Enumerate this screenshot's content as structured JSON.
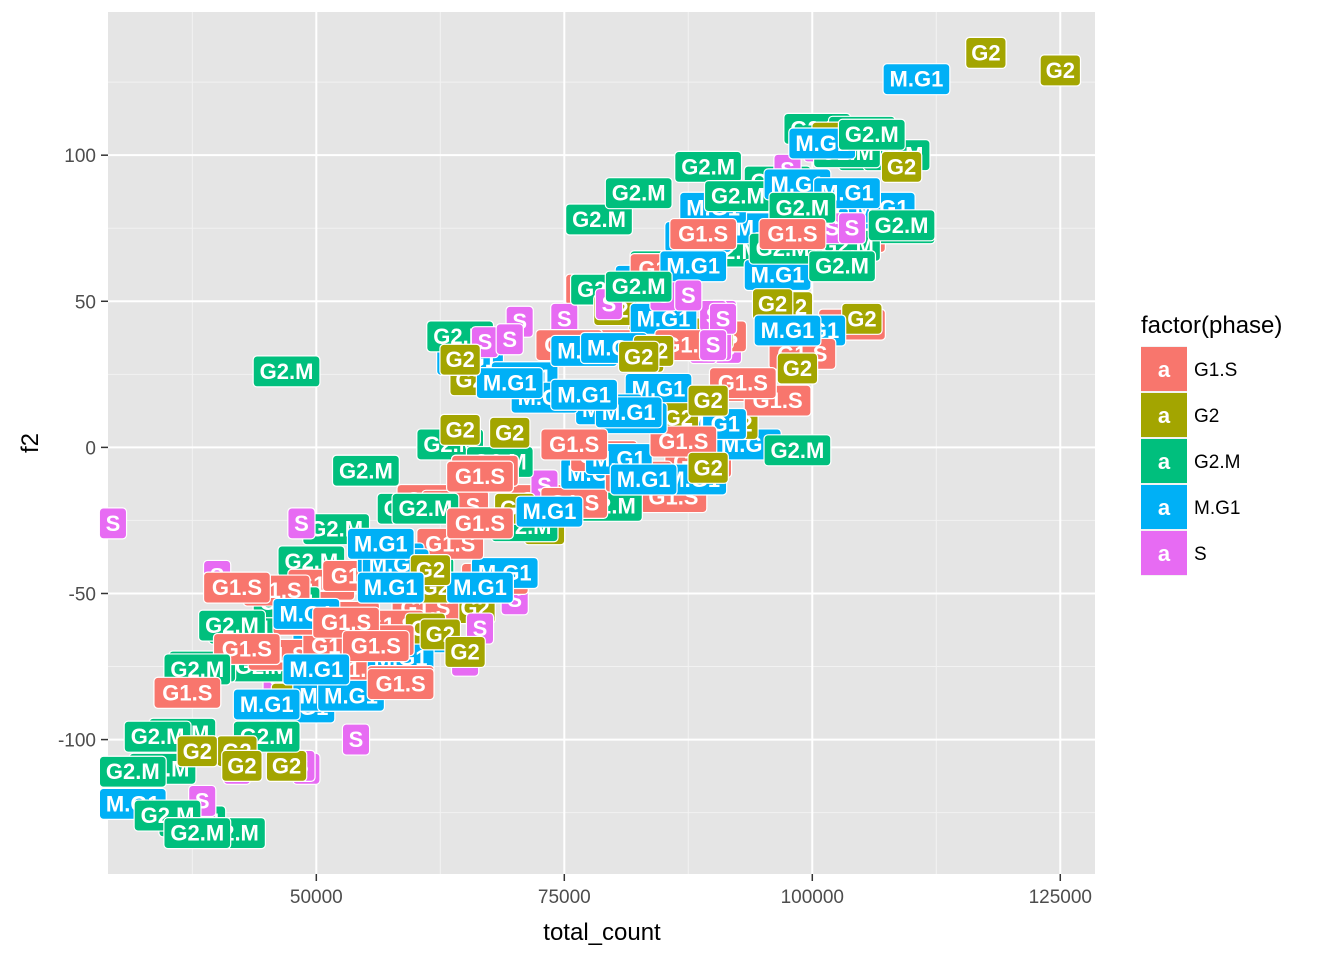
{
  "chart_data": {
    "type": "scatter",
    "subtype": "labelled points (geom_label)",
    "xlabel": "total_count",
    "ylabel": "f2",
    "xlim": [
      29000,
      128500
    ],
    "ylim": [
      -146,
      149
    ],
    "x_ticks": [
      50000,
      75000,
      100000,
      125000
    ],
    "x_tick_labels": [
      "50000",
      "75000",
      "100000",
      "125000"
    ],
    "y_ticks": [
      -100,
      -50,
      0,
      50,
      100
    ],
    "y_tick_labels": [
      "-100",
      "-50",
      "0",
      "50",
      "100"
    ],
    "grid": true,
    "legend": {
      "title": "factor(phase)",
      "placement": "right",
      "key_glyph": "a",
      "entries": [
        {
          "name": "G1.S",
          "color": "#F8766D"
        },
        {
          "name": "G2",
          "color": "#A3A500"
        },
        {
          "name": "G2.M",
          "color": "#00BF7D"
        },
        {
          "name": "M.G1",
          "color": "#00B0F6"
        },
        {
          "name": "S",
          "color": "#E76BF3"
        }
      ]
    },
    "series": [
      {
        "name": "G2.M",
        "points": [
          [
            38500,
            -75
          ],
          [
            34500,
            -110
          ],
          [
            37500,
            -128
          ],
          [
            41500,
            -132
          ],
          [
            42500,
            -62
          ],
          [
            47000,
            -53
          ],
          [
            36500,
            -98
          ],
          [
            55000,
            -8
          ],
          [
            59500,
            -21
          ],
          [
            66500,
            -10
          ],
          [
            71000,
            -27
          ],
          [
            64500,
            38
          ],
          [
            63500,
            1
          ],
          [
            68500,
            -5
          ],
          [
            79500,
            -20
          ],
          [
            79000,
            54
          ],
          [
            85000,
            62
          ],
          [
            92000,
            67
          ],
          [
            97000,
            68
          ],
          [
            98500,
            -1
          ],
          [
            103500,
            69
          ],
          [
            92500,
            86
          ],
          [
            96500,
            91
          ],
          [
            100500,
            109
          ],
          [
            105000,
            108
          ],
          [
            106000,
            100
          ],
          [
            108500,
            100
          ],
          [
            109000,
            75
          ],
          [
            89500,
            96
          ],
          [
            82500,
            87
          ],
          [
            78500,
            78
          ],
          [
            49500,
            -39
          ],
          [
            52000,
            -28
          ],
          [
            60500,
            -43
          ],
          [
            45000,
            -99
          ],
          [
            44500,
            -75
          ]
        ]
      },
      {
        "name": "G2",
        "points": [
          [
            42000,
            -104
          ],
          [
            47000,
            -109
          ],
          [
            117500,
            135
          ],
          [
            125000,
            129
          ],
          [
            64500,
            6
          ],
          [
            68000,
            -8
          ],
          [
            70000,
            -21
          ],
          [
            73000,
            -28
          ],
          [
            57000,
            -42
          ],
          [
            62000,
            -48
          ],
          [
            66000,
            -55
          ],
          [
            62500,
            -64
          ],
          [
            65000,
            -70
          ],
          [
            86500,
            10
          ],
          [
            89500,
            -7
          ],
          [
            92500,
            8
          ],
          [
            98500,
            28
          ],
          [
            105000,
            44
          ],
          [
            90000,
            39
          ],
          [
            80000,
            47
          ],
          [
            83500,
            37
          ],
          [
            83000,
            31
          ],
          [
            98000,
            48
          ],
          [
            102000,
            106
          ],
          [
            109000,
            96
          ],
          [
            65500,
            23
          ],
          [
            61000,
            -62
          ],
          [
            47500,
            -86
          ],
          [
            52500,
            -78
          ]
        ]
      },
      {
        "name": "G1.S",
        "points": [
          [
            37000,
            -84
          ],
          [
            52000,
            -68
          ],
          [
            53000,
            -58
          ],
          [
            58500,
            -80
          ],
          [
            57500,
            -61
          ],
          [
            54000,
            -76
          ],
          [
            46500,
            -71
          ],
          [
            46000,
            -49
          ],
          [
            54000,
            -44
          ],
          [
            50500,
            -47
          ],
          [
            63500,
            -33
          ],
          [
            61500,
            -18
          ],
          [
            67000,
            -8
          ],
          [
            76000,
            -19
          ],
          [
            86000,
            -17
          ],
          [
            88500,
            -5
          ],
          [
            82500,
            -10
          ],
          [
            90000,
            38
          ],
          [
            93000,
            21
          ],
          [
            96500,
            16
          ],
          [
            99000,
            32
          ],
          [
            104000,
            42
          ],
          [
            96500,
            72
          ],
          [
            104000,
            72
          ],
          [
            91000,
            72
          ],
          [
            85000,
            61
          ],
          [
            78500,
            54
          ],
          [
            75500,
            35
          ],
          [
            81000,
            35
          ],
          [
            79000,
            -3
          ],
          [
            87000,
            2
          ],
          [
            67000,
            -8
          ],
          [
            73000,
            -18
          ],
          [
            64000,
            -20
          ],
          [
            58000,
            -39
          ],
          [
            61000,
            -55
          ],
          [
            68000,
            -45
          ],
          [
            53500,
            -63
          ],
          [
            49000,
            -59
          ],
          [
            56500,
            -66
          ]
        ]
      },
      {
        "name": "M.G1",
        "points": [
          [
            31500,
            -122
          ],
          [
            48500,
            -89
          ],
          [
            53500,
            -85
          ],
          [
            58500,
            -72
          ],
          [
            60500,
            -65
          ],
          [
            49000,
            -57
          ],
          [
            51000,
            -62
          ],
          [
            56500,
            -33
          ],
          [
            58000,
            -40
          ],
          [
            63500,
            -49
          ],
          [
            66500,
            -48
          ],
          [
            69000,
            -43
          ],
          [
            73500,
            -22
          ],
          [
            78000,
            -9
          ],
          [
            80500,
            -4
          ],
          [
            84500,
            20
          ],
          [
            90000,
            8
          ],
          [
            93500,
            1
          ],
          [
            77000,
            33
          ],
          [
            85000,
            44
          ],
          [
            96500,
            59
          ],
          [
            98500,
            90
          ],
          [
            101000,
            87
          ],
          [
            102500,
            80
          ],
          [
            98500,
            86
          ],
          [
            95000,
            75
          ],
          [
            90000,
            82
          ],
          [
            88500,
            72
          ],
          [
            83500,
            57
          ],
          [
            100000,
            40
          ],
          [
            88000,
            -11
          ],
          [
            69500,
            22
          ],
          [
            73000,
            17
          ],
          [
            79500,
            13
          ],
          [
            82000,
            10
          ],
          [
            65500,
            30
          ],
          [
            71000,
            24
          ],
          [
            57500,
            -38
          ],
          [
            51000,
            -85
          ]
        ]
      },
      {
        "name": "S",
        "points": [
          [
            29500,
            -26
          ],
          [
            40000,
            -44
          ],
          [
            43500,
            -61
          ],
          [
            46000,
            -79
          ],
          [
            44500,
            -91
          ],
          [
            38500,
            -122
          ],
          [
            46500,
            -106
          ],
          [
            42000,
            -110
          ],
          [
            48500,
            -109
          ],
          [
            49000,
            -110
          ],
          [
            54000,
            -100
          ],
          [
            66500,
            -62
          ],
          [
            65000,
            -73
          ],
          [
            70000,
            -52
          ],
          [
            73000,
            -13
          ],
          [
            75000,
            44
          ],
          [
            79500,
            49
          ],
          [
            82000,
            57
          ],
          [
            84000,
            56
          ],
          [
            86000,
            42
          ],
          [
            89000,
            34
          ],
          [
            91500,
            34
          ],
          [
            91000,
            45
          ],
          [
            90500,
            41
          ],
          [
            95500,
            70
          ],
          [
            102000,
            75
          ],
          [
            97500,
            95
          ],
          [
            100500,
            103
          ],
          [
            67000,
            36
          ],
          [
            69500,
            37
          ],
          [
            70500,
            43
          ]
        ]
      }
    ],
    "labels_drawn_on_top": [
      {
        "label": "G1.S",
        "x": 87500,
        "y": 35
      },
      {
        "label": "G2",
        "x": 64500,
        "y": 30
      },
      {
        "label": "M.G1",
        "x": 80000,
        "y": 34
      },
      {
        "label": "G2",
        "x": 84000,
        "y": 33
      },
      {
        "label": "S",
        "x": 90500,
        "y": 35
      },
      {
        "label": "S",
        "x": 90000,
        "y": 45
      },
      {
        "label": "S",
        "x": 85000,
        "y": 52
      },
      {
        "label": "G2.M",
        "x": 103500,
        "y": 101
      },
      {
        "label": "M.G1",
        "x": 101000,
        "y": 104
      },
      {
        "label": "G2.M",
        "x": 106000,
        "y": 107
      },
      {
        "label": "M.G1",
        "x": 110500,
        "y": 126
      },
      {
        "label": "G2",
        "x": 117500,
        "y": 135
      },
      {
        "label": "G2",
        "x": 125000,
        "y": 129
      },
      {
        "label": "M.G1",
        "x": 107000,
        "y": 82
      },
      {
        "label": "M.G1",
        "x": 103500,
        "y": 87
      },
      {
        "label": "G2.M",
        "x": 99000,
        "y": 82
      },
      {
        "label": "G1.S",
        "x": 89000,
        "y": 73
      },
      {
        "label": "G1.S",
        "x": 98000,
        "y": 73
      },
      {
        "label": "S",
        "x": 104000,
        "y": 75
      },
      {
        "label": "G2.M",
        "x": 109000,
        "y": 76
      },
      {
        "label": "M.G1",
        "x": 88000,
        "y": 62
      },
      {
        "label": "G2.M",
        "x": 103000,
        "y": 62
      },
      {
        "label": "G2.M",
        "x": 82500,
        "y": 55
      },
      {
        "label": "S",
        "x": 87500,
        "y": 52
      },
      {
        "label": "G2",
        "x": 96000,
        "y": 49
      },
      {
        "label": "M.G1",
        "x": 97500,
        "y": 40
      },
      {
        "label": "S",
        "x": 91000,
        "y": 44
      },
      {
        "label": "S",
        "x": 90000,
        "y": 35
      },
      {
        "label": "G2",
        "x": 82500,
        "y": 31
      },
      {
        "label": "G1.S",
        "x": 93000,
        "y": 22
      },
      {
        "label": "G2",
        "x": 98500,
        "y": 27
      },
      {
        "label": "M.G1",
        "x": 81500,
        "y": 12
      },
      {
        "label": "G2",
        "x": 89500,
        "y": 16
      },
      {
        "label": "G2.M",
        "x": 47000,
        "y": 26
      },
      {
        "label": "M.G1",
        "x": 77000,
        "y": 18
      },
      {
        "label": "G2.M",
        "x": 55000,
        "y": -8
      },
      {
        "label": "G2",
        "x": 69500,
        "y": 5
      },
      {
        "label": "G1.S",
        "x": 76000,
        "y": 1
      },
      {
        "label": "G1.S",
        "x": 66500,
        "y": -10
      },
      {
        "label": "M.G1",
        "x": 83000,
        "y": -11
      },
      {
        "label": "G2.M",
        "x": 61000,
        "y": -21
      },
      {
        "label": "G1.S",
        "x": 66500,
        "y": -26
      },
      {
        "label": "S",
        "x": 48500,
        "y": -26
      },
      {
        "label": "G2",
        "x": 61500,
        "y": -42
      },
      {
        "label": "M.G1",
        "x": 57500,
        "y": -48
      },
      {
        "label": "G1.S",
        "x": 42000,
        "y": -48
      },
      {
        "label": "G2.M",
        "x": 41500,
        "y": -61
      },
      {
        "label": "G1.S",
        "x": 53000,
        "y": -60
      },
      {
        "label": "G1.S",
        "x": 56000,
        "y": -68
      },
      {
        "label": "G1.S",
        "x": 43000,
        "y": -69
      },
      {
        "label": "M.G1",
        "x": 50000,
        "y": -76
      },
      {
        "label": "G1.S",
        "x": 58500,
        "y": -81
      },
      {
        "label": "G2.M",
        "x": 38000,
        "y": -76
      },
      {
        "label": "G1.S",
        "x": 37000,
        "y": -84
      },
      {
        "label": "M.G1",
        "x": 45000,
        "y": -88
      },
      {
        "label": "G2.M",
        "x": 34000,
        "y": -99
      },
      {
        "label": "G2",
        "x": 38000,
        "y": -104
      },
      {
        "label": "G2",
        "x": 42500,
        "y": -109
      },
      {
        "label": "G2.M",
        "x": 31500,
        "y": -111
      },
      {
        "label": "S",
        "x": 38500,
        "y": -121
      },
      {
        "label": "G2.M",
        "x": 35000,
        "y": -126
      },
      {
        "label": "G2.M",
        "x": 38000,
        "y": -132
      }
    ]
  }
}
